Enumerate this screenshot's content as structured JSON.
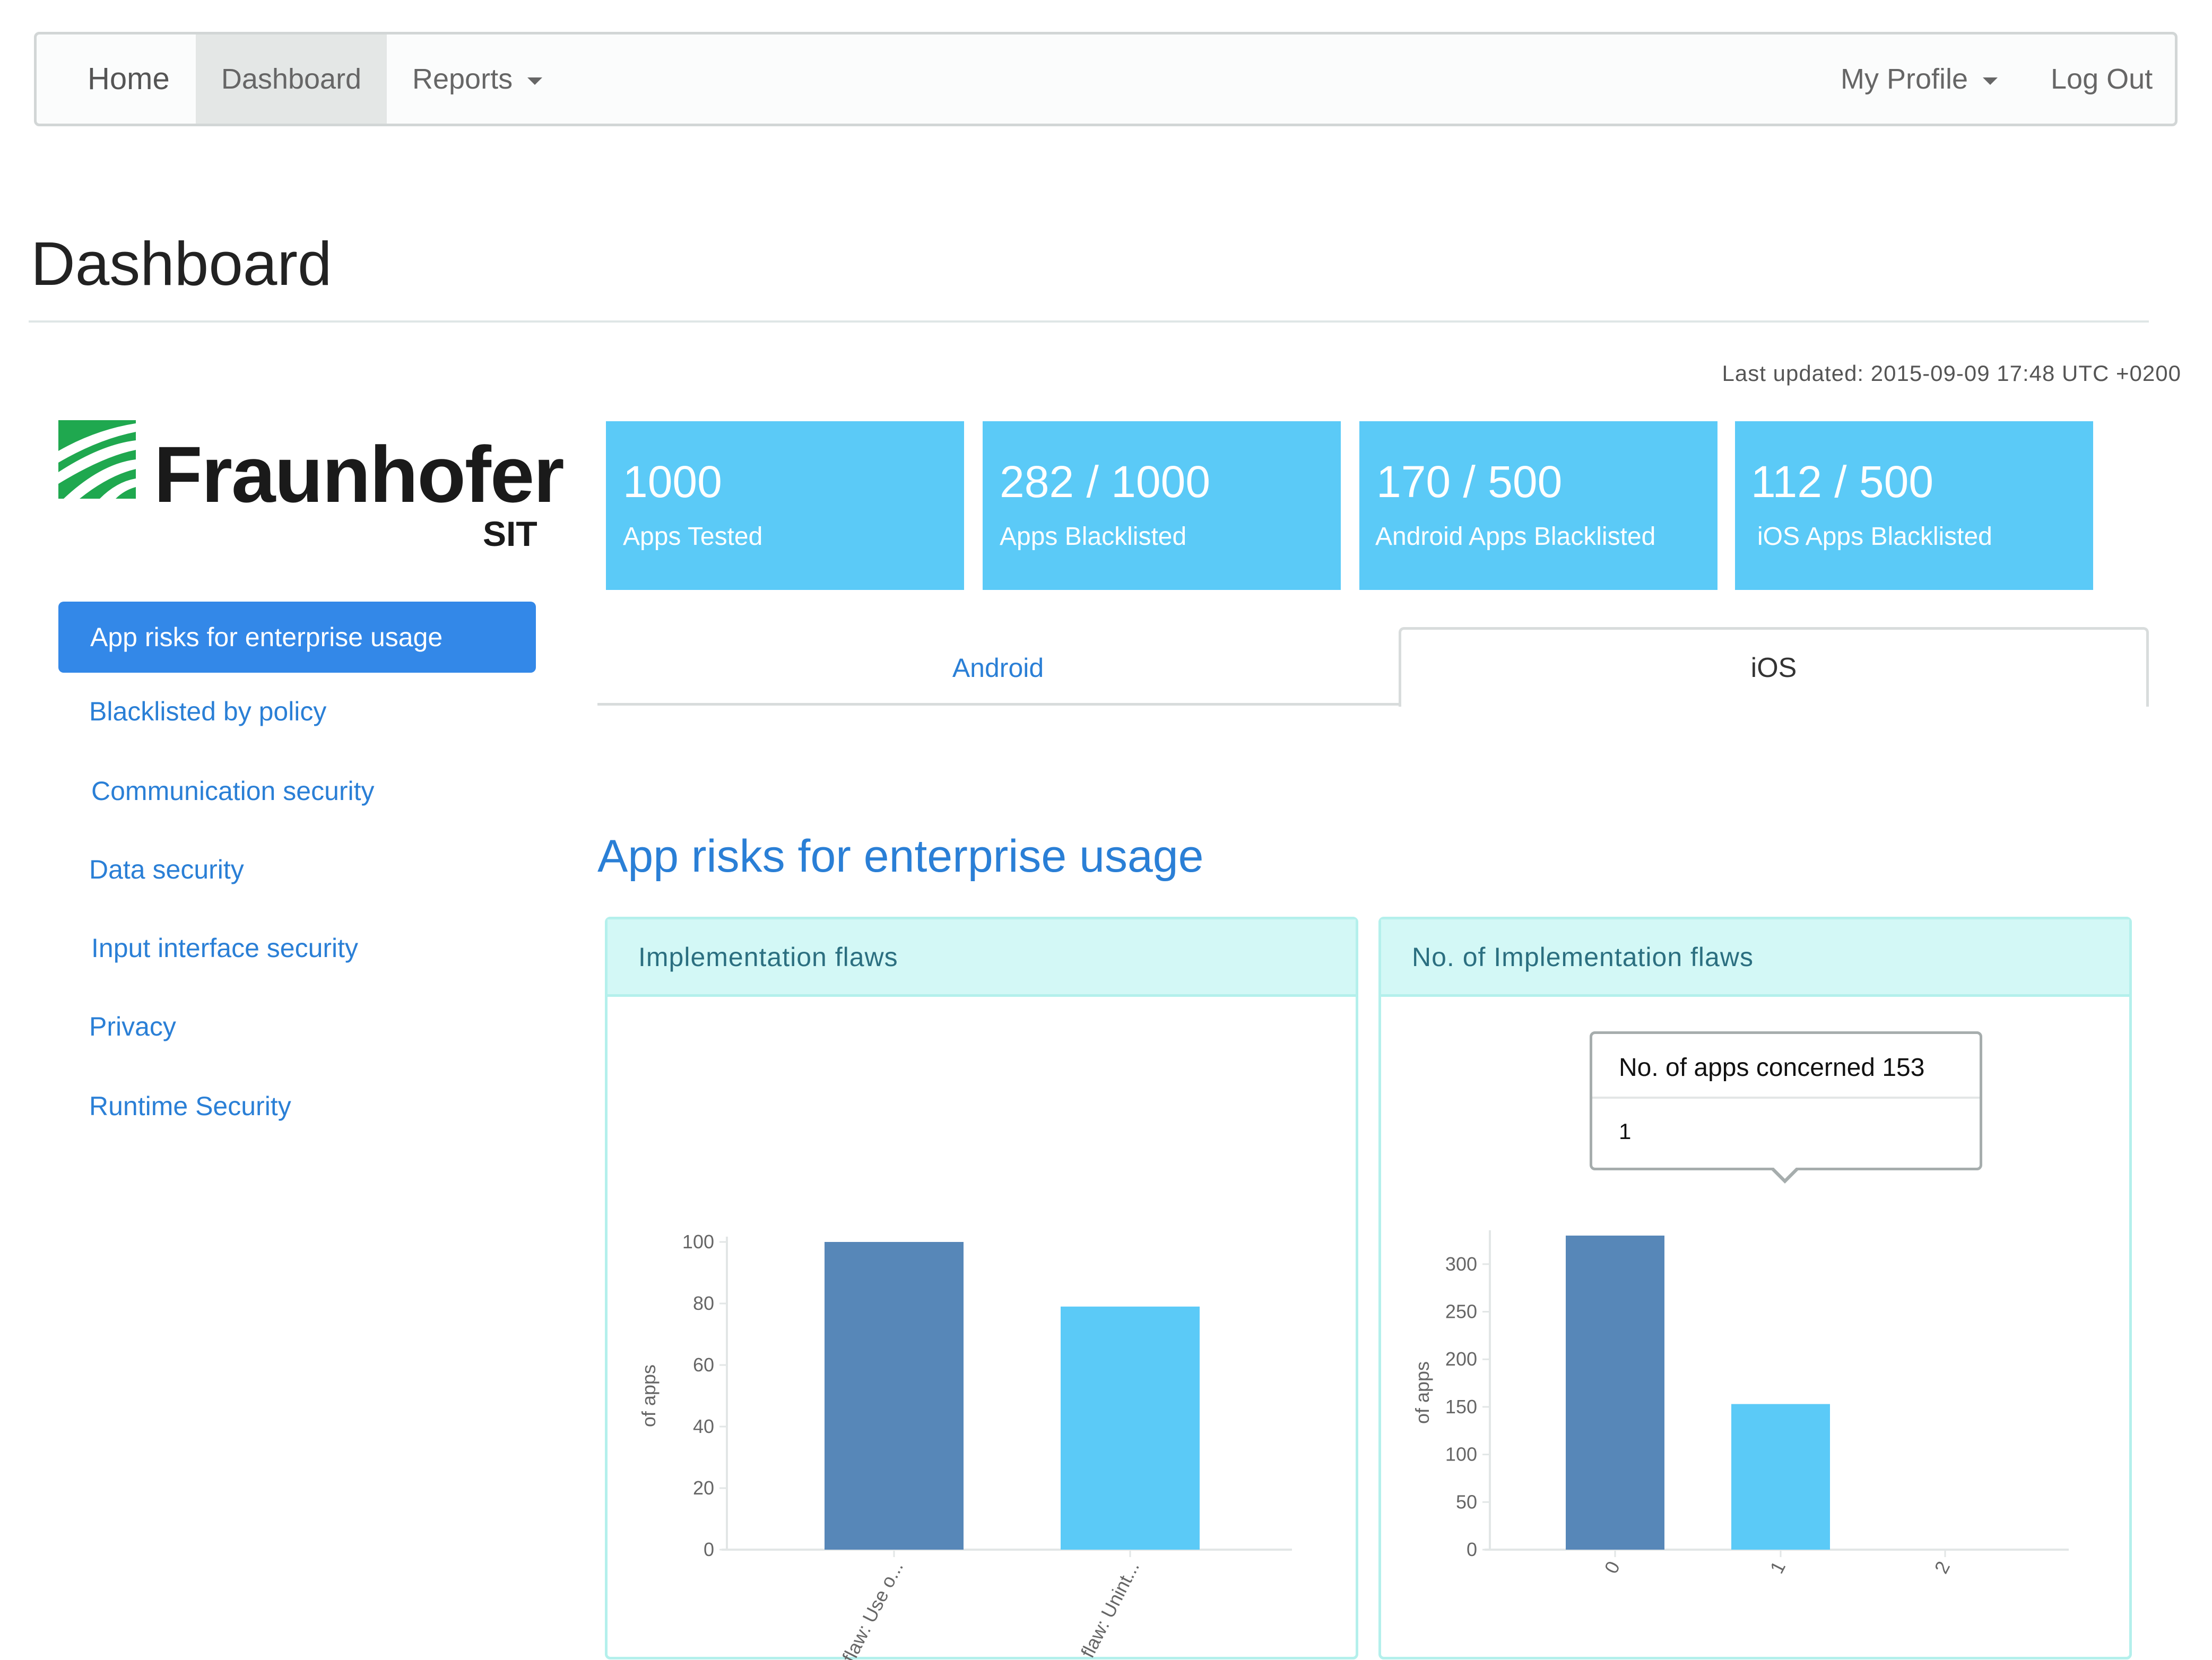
{
  "navbar": {
    "home": "Home",
    "dashboard": "Dashboard",
    "reports": "Reports",
    "my_profile": "My Profile",
    "log_out": "Log Out"
  },
  "page": {
    "title": "Dashboard",
    "last_updated": "Last updated: 2015-09-09 17:48 UTC +0200"
  },
  "logo": {
    "name": "Fraunhofer",
    "sub": "SIT",
    "mark_color": "#1fa84f"
  },
  "sidebar": {
    "items": [
      {
        "label": "App risks for enterprise usage",
        "active": true
      },
      {
        "label": "Blacklisted by policy"
      },
      {
        "label": "Communication security"
      },
      {
        "label": "Data security"
      },
      {
        "label": "Input interface security"
      },
      {
        "label": "Privacy"
      },
      {
        "label": "Runtime Security"
      }
    ]
  },
  "stats": [
    {
      "value": "1000",
      "label": "Apps Tested"
    },
    {
      "value": "282 / 1000",
      "label": "Apps Blacklisted"
    },
    {
      "value": "170 / 500",
      "label": "Android Apps Blacklisted"
    },
    {
      "value": "112 / 500",
      "label": "iOS Apps Blacklisted"
    }
  ],
  "tabs": {
    "android": "Android",
    "ios": "iOS",
    "active": "ios"
  },
  "section": {
    "title": "App risks for enterprise usage"
  },
  "panels": {
    "left_title": "Implementation flaws",
    "right_title": "No. of Implementation flaws"
  },
  "tooltip": {
    "title": "No. of apps concerned 153",
    "value": "1"
  },
  "colors": {
    "bar_dark": "#5787b8",
    "bar_light": "#5bcaf7",
    "accent": "#3388e8",
    "link": "#2a7fd6"
  },
  "chart_data": [
    {
      "type": "bar",
      "categories": [
        "possible flaw: Use o...",
        "possible flaw: Unint..."
      ],
      "values": [
        100,
        79
      ],
      "ylabel": "of apps",
      "ylim": [
        0,
        100
      ],
      "yticks": [
        0,
        20,
        40,
        60,
        80,
        100
      ],
      "grid": false
    },
    {
      "type": "bar",
      "categories": [
        "0",
        "1",
        "2"
      ],
      "values": [
        330,
        153,
        0
      ],
      "ylabel": "of apps",
      "ylim": [
        0,
        330
      ],
      "yticks": [
        0,
        50,
        100,
        150,
        200,
        250,
        300
      ],
      "grid": false
    }
  ]
}
